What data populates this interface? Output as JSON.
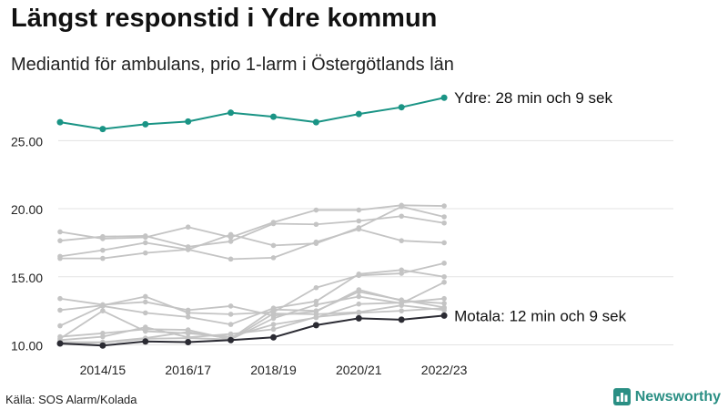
{
  "header": {
    "title": "Längst responstid i Ydre kommun",
    "subtitle": "Mediantid för ambulans, prio 1-larm i Östergötlands län"
  },
  "footer": {
    "source": "Källa: SOS Alarm/Kolada",
    "brand": "Newsworthy",
    "brand_color": "#2a8f84"
  },
  "colors": {
    "highlight": "#1a9485",
    "emphasis": "#2b2b33",
    "other": "#c4c4c4",
    "grid": "#e3e3e3"
  },
  "chart_data": {
    "type": "line",
    "x": [
      "2013/14",
      "2014/15",
      "2015/16",
      "2016/17",
      "2017/18",
      "2018/19",
      "2019/20",
      "2020/21",
      "2021/22",
      "2022/23"
    ],
    "x_tick_labels": [
      "2014/15",
      "2016/17",
      "2018/19",
      "2020/21",
      "2022/23"
    ],
    "y_ticks": [
      10,
      15,
      20,
      25
    ],
    "y_tick_labels": [
      "10.00",
      "15.00",
      "20.00",
      "25.00"
    ],
    "ylim": [
      9.5,
      28.5
    ],
    "grid": true,
    "series": [
      {
        "name": "Ydre",
        "role": "highlight",
        "end_label": "Ydre: 28 min och 9 sek",
        "values": [
          26.35,
          25.85,
          26.2,
          26.4,
          27.05,
          26.75,
          26.35,
          26.95,
          27.45,
          28.15
        ]
      },
      {
        "name": "Motala",
        "role": "emphasis",
        "end_label": "Motala: 12 min och 9 sek",
        "values": [
          10.1,
          9.95,
          10.25,
          10.2,
          10.35,
          10.55,
          11.45,
          11.95,
          11.85,
          12.15
        ]
      },
      {
        "role": "other",
        "values": [
          18.3,
          17.8,
          17.9,
          18.65,
          17.9,
          19.0,
          19.9,
          19.9,
          20.25,
          20.2
        ]
      },
      {
        "role": "other",
        "values": [
          17.65,
          17.95,
          18.0,
          17.2,
          17.6,
          18.9,
          18.85,
          19.1,
          19.45,
          18.95
        ]
      },
      {
        "role": "other",
        "values": [
          16.5,
          16.95,
          17.5,
          17.0,
          18.1,
          17.3,
          17.45,
          18.6,
          20.15,
          19.4
        ]
      },
      {
        "role": "other",
        "values": [
          16.35,
          16.35,
          16.75,
          17.0,
          16.3,
          16.4,
          17.55,
          18.5,
          17.65,
          17.5
        ]
      },
      {
        "role": "other",
        "values": [
          12.55,
          12.9,
          13.55,
          12.35,
          12.25,
          12.4,
          14.2,
          15.1,
          15.25,
          16.0
        ]
      },
      {
        "role": "other",
        "values": [
          13.4,
          12.95,
          13.15,
          12.55,
          12.85,
          12.15,
          12.45,
          14.05,
          13.25,
          13.05
        ]
      },
      {
        "role": "other",
        "values": [
          11.4,
          12.85,
          12.35,
          12.05,
          11.5,
          12.7,
          13.2,
          15.2,
          15.5,
          15.0
        ]
      },
      {
        "role": "other",
        "values": [
          10.6,
          10.85,
          11.15,
          11.1,
          10.4,
          11.95,
          12.95,
          13.55,
          13.05,
          14.6
        ]
      },
      {
        "role": "other",
        "values": [
          10.45,
          12.5,
          11.0,
          10.85,
          10.6,
          11.5,
          12.0,
          13.0,
          13.1,
          13.4
        ]
      },
      {
        "role": "other",
        "values": [
          10.35,
          10.6,
          11.3,
          10.55,
          10.8,
          11.15,
          12.05,
          12.35,
          12.5,
          12.7
        ]
      },
      {
        "role": "other",
        "values": [
          10.2,
          10.2,
          10.5,
          10.95,
          10.45,
          12.6,
          12.5,
          13.9,
          13.3,
          12.75
        ]
      },
      {
        "role": "other",
        "values": [
          10.1,
          10.15,
          10.45,
          10.5,
          10.4,
          12.3,
          12.25,
          12.4,
          12.9,
          12.55
        ]
      }
    ]
  }
}
